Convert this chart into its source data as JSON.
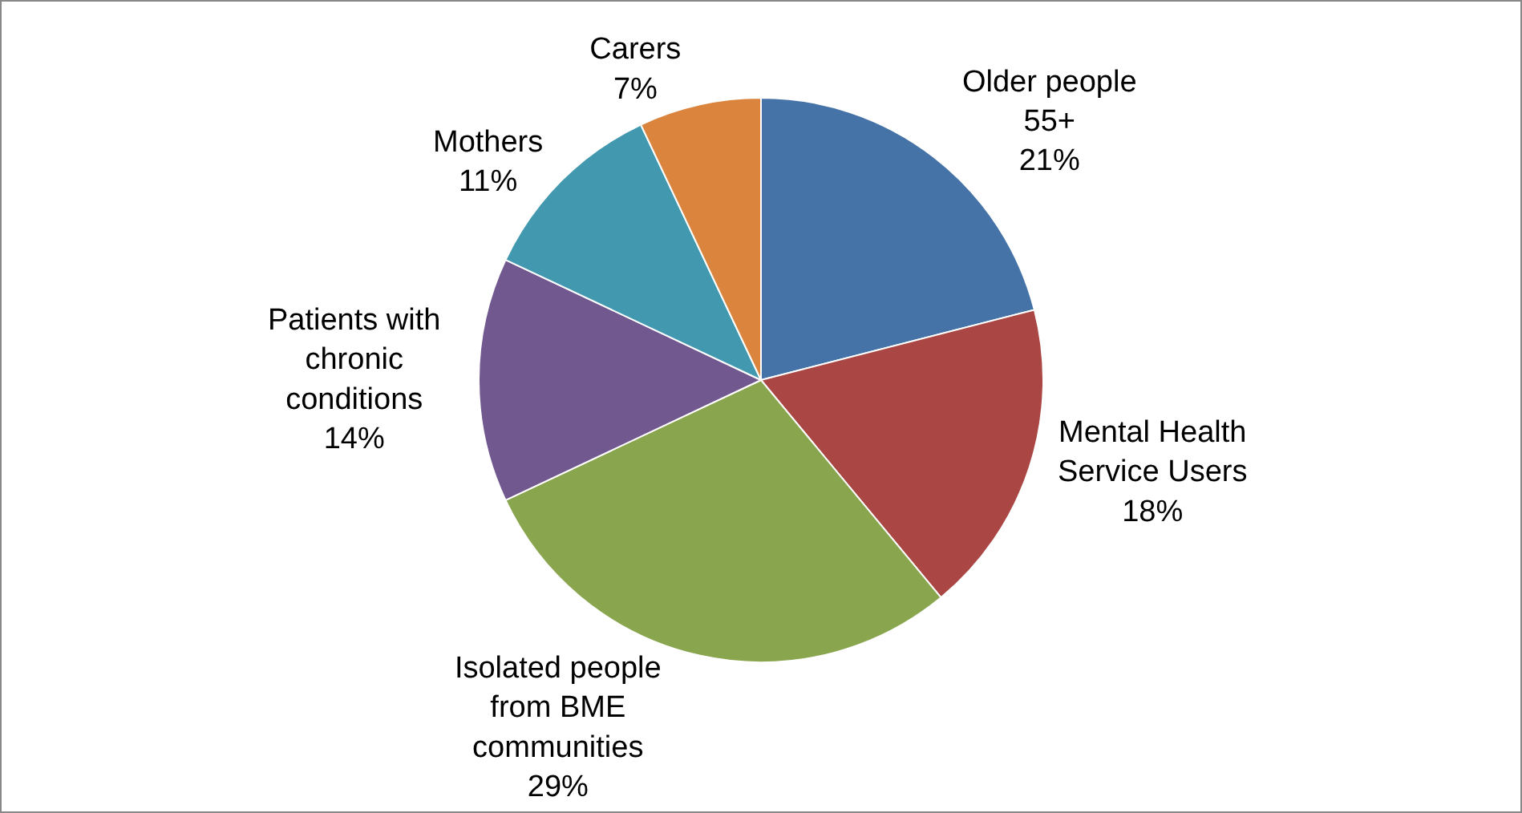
{
  "chart_data": {
    "type": "pie",
    "categories": [
      "Older people 55+",
      "Mental Health Service Users",
      "Isolated people from BME communities",
      "Patients with chronic conditions",
      "Mothers",
      "Carers"
    ],
    "values": [
      21,
      18,
      29,
      14,
      11,
      7
    ],
    "value_labels": [
      "21%",
      "18%",
      "29%",
      "14%",
      "11%",
      "7%"
    ],
    "colors": [
      "#4572a7",
      "#aa4643",
      "#89a54e",
      "#71588f",
      "#4198af",
      "#db843d"
    ],
    "legend": false
  }
}
